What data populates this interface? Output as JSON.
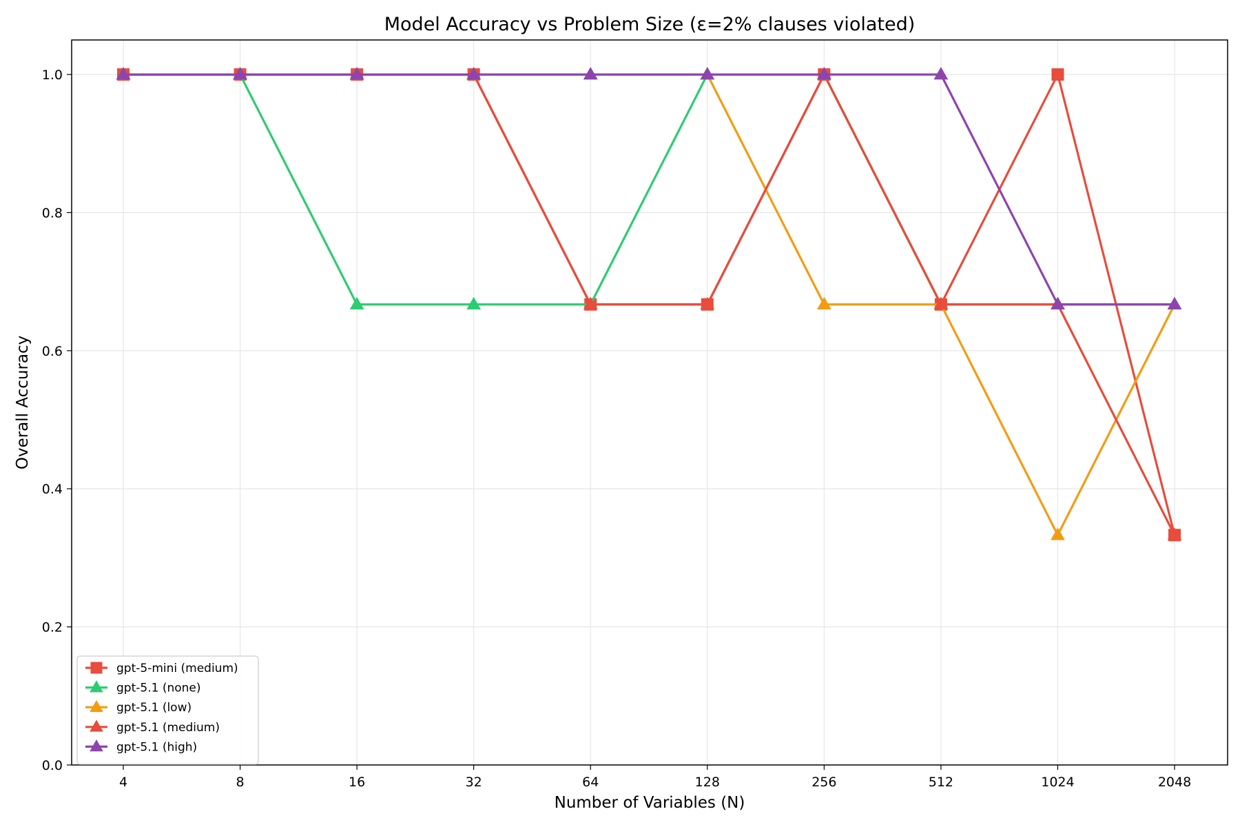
{
  "chart_data": {
    "type": "line",
    "title": "Model Accuracy vs Problem Size (ε=2% clauses violated)",
    "xlabel": "Number of Variables (N)",
    "ylabel": "Overall Accuracy",
    "categories": [
      "4",
      "8",
      "16",
      "32",
      "64",
      "128",
      "256",
      "512",
      "1024",
      "2048"
    ],
    "ylim": [
      0,
      1.05
    ],
    "yticks": [
      "0.0",
      "0.2",
      "0.4",
      "0.6",
      "0.8",
      "1.0"
    ],
    "grid": true,
    "legend_position": "lower-left",
    "series": [
      {
        "name": "gpt-5-mini (medium)",
        "color": "#e74c3c",
        "marker": "square",
        "values": [
          1.0,
          1.0,
          1.0,
          1.0,
          0.667,
          0.667,
          1.0,
          0.667,
          1.0,
          0.333
        ]
      },
      {
        "name": "gpt-5.1 (none)",
        "color": "#2ecc71",
        "marker": "triangle",
        "values": [
          1.0,
          1.0,
          0.667,
          0.667,
          0.667,
          1.0,
          1.0,
          0.667,
          0.667,
          0.667
        ]
      },
      {
        "name": "gpt-5.1 (low)",
        "color": "#f39c12",
        "marker": "triangle",
        "values": [
          1.0,
          1.0,
          1.0,
          1.0,
          1.0,
          1.0,
          0.667,
          0.667,
          0.333,
          0.667
        ]
      },
      {
        "name": "gpt-5.1 (medium)",
        "color": "#e74c3c",
        "marker": "triangle",
        "values": [
          1.0,
          1.0,
          1.0,
          1.0,
          0.667,
          0.667,
          1.0,
          0.667,
          0.667,
          0.333
        ]
      },
      {
        "name": "gpt-5.1 (high)",
        "color": "#8e44ad",
        "marker": "triangle",
        "values": [
          1.0,
          1.0,
          1.0,
          1.0,
          1.0,
          1.0,
          1.0,
          1.0,
          0.667,
          0.667
        ]
      }
    ]
  }
}
